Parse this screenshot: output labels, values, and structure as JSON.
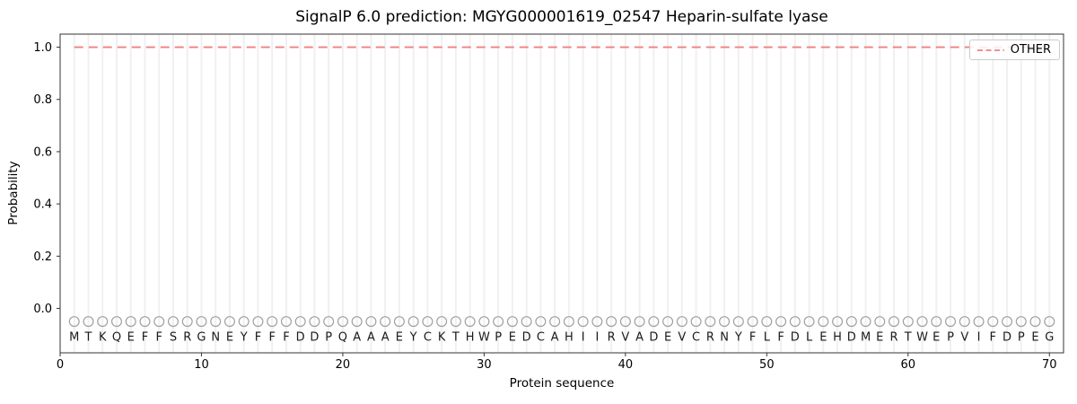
{
  "figure": {
    "title": "SignalP 6.0 prediction: MGYG000001619_02547 Heparin-sulfate lyase",
    "xlabel": "Protein sequence",
    "ylabel": "Probability",
    "legend": {
      "position": "upper right",
      "items": [
        {
          "label": "OTHER",
          "color": "#f08080",
          "linestyle": "dashed"
        }
      ]
    }
  },
  "chart_data": {
    "type": "line",
    "title": "SignalP 6.0 prediction: MGYG000001619_02547 Heparin-sulfate lyase",
    "xlabel": "Protein sequence",
    "ylabel": "Probability",
    "xlim": [
      0,
      71
    ],
    "ylim": [
      -0.17,
      1.05
    ],
    "x_ticks": [
      0,
      10,
      20,
      30,
      40,
      50,
      60,
      70
    ],
    "y_ticks": [
      0.0,
      0.2,
      0.4,
      0.6,
      0.8,
      1.0
    ],
    "grid": "vertical-per-residue",
    "legend_position": "upper right",
    "sequence": "MTKQEFFSRGNEYFFFDDPQAAAEYCKTHWPEDCAHIIRVADEVCRNYFLFDLEHDMERTWEPVIFDPEG",
    "residue_marker_y": -0.05,
    "series": [
      {
        "name": "OTHER",
        "color": "#f08080",
        "linestyle": "dashed",
        "x": [
          1,
          2,
          3,
          4,
          5,
          6,
          7,
          8,
          9,
          10,
          11,
          12,
          13,
          14,
          15,
          16,
          17,
          18,
          19,
          20,
          21,
          22,
          23,
          24,
          25,
          26,
          27,
          28,
          29,
          30,
          31,
          32,
          33,
          34,
          35,
          36,
          37,
          38,
          39,
          40,
          41,
          42,
          43,
          44,
          45,
          46,
          47,
          48,
          49,
          50,
          51,
          52,
          53,
          54,
          55,
          56,
          57,
          58,
          59,
          60,
          61,
          62,
          63,
          64,
          65,
          66,
          67,
          68,
          69,
          70
        ],
        "y": [
          1.0,
          1.0,
          1.0,
          1.0,
          1.0,
          1.0,
          1.0,
          1.0,
          1.0,
          1.0,
          1.0,
          1.0,
          1.0,
          1.0,
          1.0,
          1.0,
          1.0,
          1.0,
          1.0,
          1.0,
          1.0,
          1.0,
          1.0,
          1.0,
          1.0,
          1.0,
          1.0,
          1.0,
          1.0,
          1.0,
          1.0,
          1.0,
          1.0,
          1.0,
          1.0,
          1.0,
          1.0,
          1.0,
          1.0,
          1.0,
          1.0,
          1.0,
          1.0,
          1.0,
          1.0,
          1.0,
          1.0,
          1.0,
          1.0,
          1.0,
          1.0,
          1.0,
          1.0,
          1.0,
          1.0,
          1.0,
          1.0,
          1.0,
          1.0,
          1.0,
          1.0,
          1.0,
          1.0,
          1.0,
          1.0,
          1.0,
          1.0,
          1.0,
          1.0,
          1.0
        ]
      }
    ],
    "colors": {
      "line": "#f08080",
      "grid": "#f0f0f0",
      "marker": "#a0a0a0",
      "letters": "#1a1a1a",
      "spine": "#333333",
      "tick_text": "#000000"
    }
  }
}
